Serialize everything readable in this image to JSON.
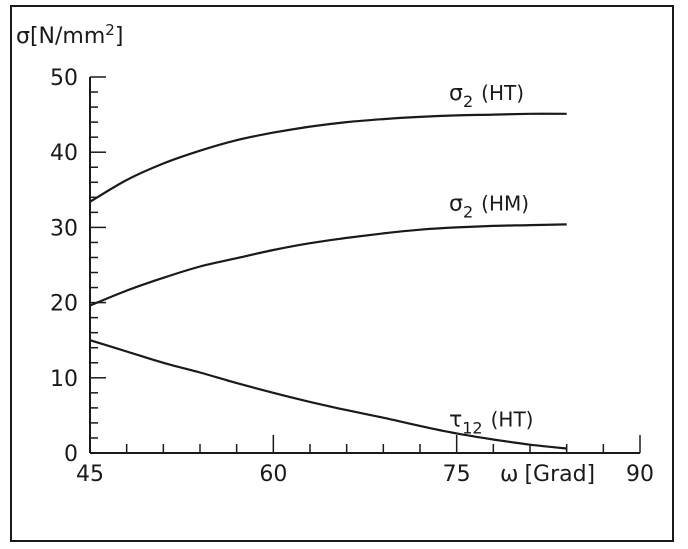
{
  "chart_data": {
    "type": "line",
    "ylabel_symbol": "σ",
    "ylabel_unit": "[N/mm",
    "ylabel_exp": "2",
    "ylabel_close": "]",
    "xlabel_symbol": "ω",
    "xlabel_unit": "[Grad]",
    "xlim": [
      45,
      90
    ],
    "ylim": [
      0,
      50
    ],
    "x_ticks": [
      "45",
      "60",
      "75",
      "90"
    ],
    "y_ticks": [
      "0",
      "10",
      "20",
      "30",
      "40",
      "50"
    ],
    "series": [
      {
        "name": "σ2 (HT)",
        "label_symbol": "σ",
        "label_sub": "2",
        "label_suffix": "(HT)",
        "x": [
          45,
          48,
          51,
          54,
          57,
          60,
          63,
          66,
          69,
          72,
          75,
          78,
          81,
          84
        ],
        "y": [
          33.4,
          36.3,
          38.5,
          40.2,
          41.6,
          42.6,
          43.4,
          44.0,
          44.4,
          44.7,
          44.9,
          45.0,
          45.1,
          45.1
        ]
      },
      {
        "name": "σ2 (HM)",
        "label_symbol": "σ",
        "label_sub": "2",
        "label_suffix": "(HM)",
        "x": [
          45,
          48,
          51,
          54,
          57,
          60,
          63,
          66,
          69,
          72,
          75,
          78,
          81,
          84
        ],
        "y": [
          19.6,
          21.6,
          23.3,
          24.8,
          25.9,
          27.0,
          27.9,
          28.6,
          29.2,
          29.7,
          30.0,
          30.2,
          30.3,
          30.4
        ]
      },
      {
        "name": "τ12 (HT)",
        "label_symbol": "τ",
        "label_sub": "12",
        "label_suffix": "(HT)",
        "x": [
          45,
          48,
          51,
          54,
          57,
          60,
          63,
          66,
          69,
          72,
          75,
          78,
          81,
          84
        ],
        "y": [
          15.0,
          13.5,
          12.0,
          10.7,
          9.3,
          8.0,
          6.8,
          5.7,
          4.7,
          3.6,
          2.6,
          1.8,
          1.1,
          0.6
        ]
      }
    ]
  }
}
